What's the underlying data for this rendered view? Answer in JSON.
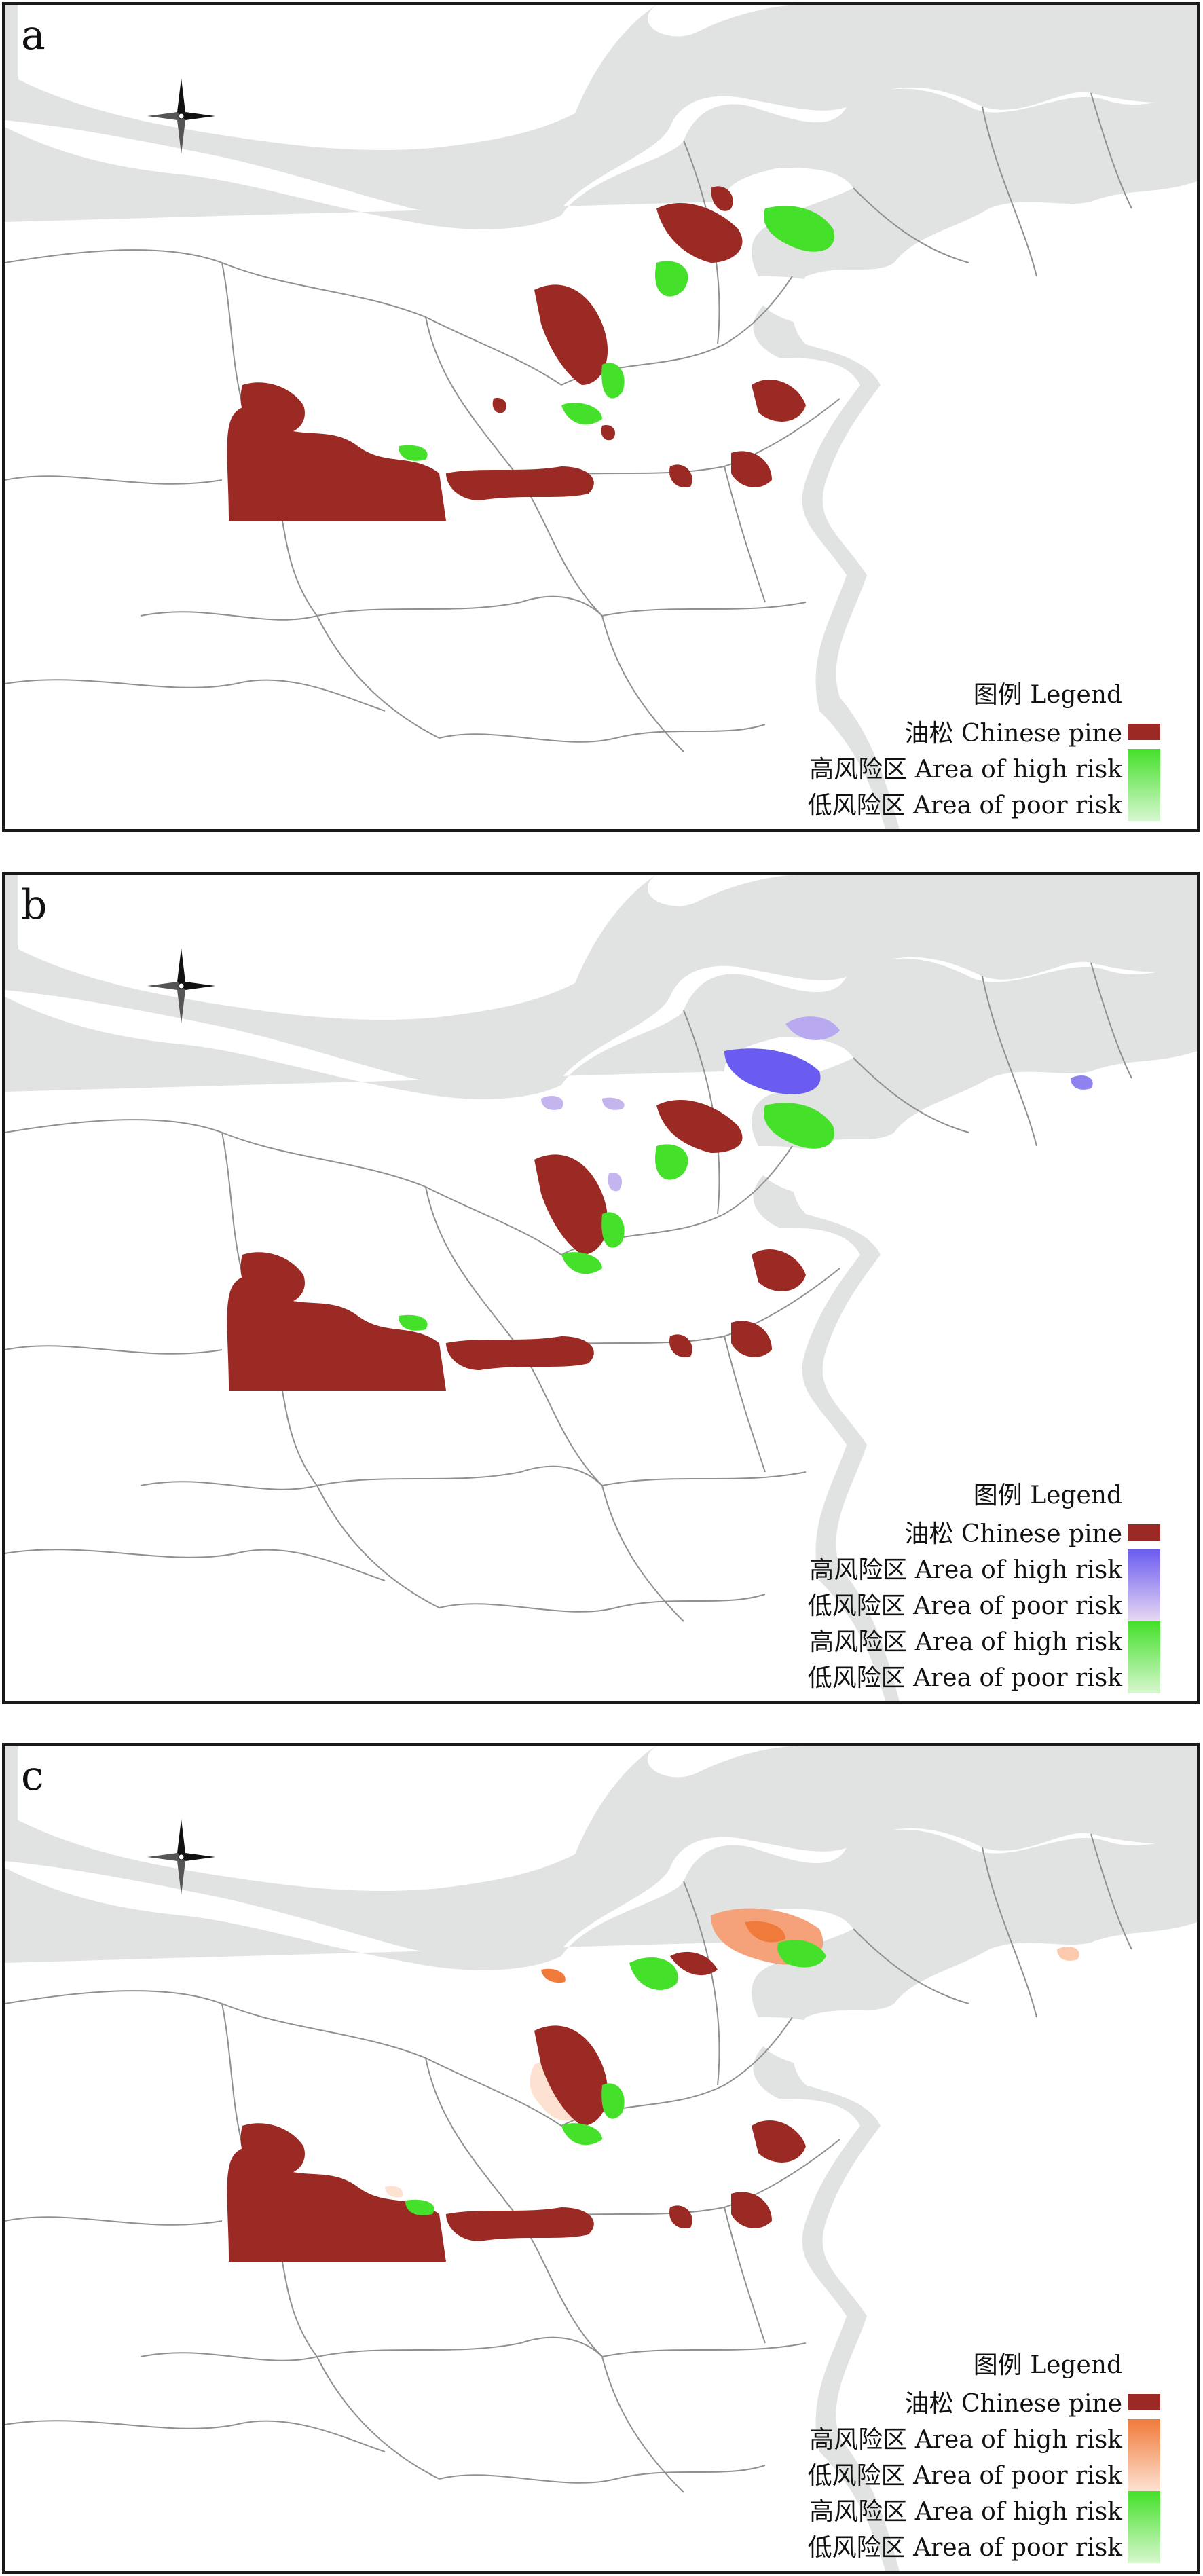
{
  "figure": {
    "panels": [
      {
        "label": "a",
        "legend": {
          "title": "图例 Legend",
          "entries": [
            {
              "text": "油松 Chinese pine",
              "color": "#9b2a24"
            },
            {
              "text": "高风险区 Area of high risk",
              "color": "#44e02a"
            },
            {
              "text": "低风险区 Area of poor risk",
              "color": "#d7f7cf"
            }
          ]
        }
      },
      {
        "label": "b",
        "legend": {
          "title": "图例 Legend",
          "entries": [
            {
              "text": "油松 Chinese pine",
              "color": "#9b2a24"
            },
            {
              "text": "高风险区 Area of high risk",
              "color": "#6a5cf0"
            },
            {
              "text": "低风险区 Area of poor risk",
              "color": "#e8d8f2"
            },
            {
              "text": "高风险区 Area of high risk",
              "color": "#44e02a"
            },
            {
              "text": "低风险区 Area of poor risk",
              "color": "#d7f7cf"
            }
          ]
        }
      },
      {
        "label": "c",
        "legend": {
          "title": "图例 Legend",
          "entries": [
            {
              "text": "油松 Chinese pine",
              "color": "#9b2a24"
            },
            {
              "text": "高风险区 Area of high risk",
              "color": "#f07a3a"
            },
            {
              "text": "低风险区 Area of poor risk",
              "color": "#fde2d2"
            },
            {
              "text": "高风险区 Area of high risk",
              "color": "#44e02a"
            },
            {
              "text": "低风险区 Area of poor risk",
              "color": "#d7f7cf"
            }
          ]
        }
      }
    ]
  },
  "colors": {
    "land": "#e1e3e2",
    "sea": "#ffffff",
    "boundary": "#8e9190",
    "pine": "#9b2a24",
    "green": "#44e02a",
    "purple": "#6a5cf0",
    "orange": "#f07a3a"
  }
}
